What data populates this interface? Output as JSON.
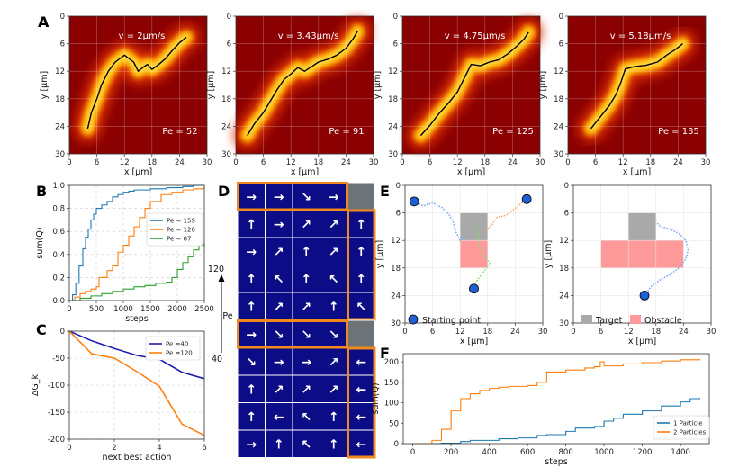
{
  "panel_labels": [
    "A",
    "B",
    "C",
    "D",
    "E",
    "F"
  ],
  "chart_data": [
    {
      "id": "A",
      "type": "heatmap",
      "xlabel": "x [μm]",
      "ylabel": "y [μm]",
      "xticks": [
        0,
        6,
        12,
        18,
        24,
        30
      ],
      "yticks": [
        0,
        6,
        12,
        18,
        24,
        30
      ],
      "xlim": [
        0,
        30
      ],
      "ylim": [
        30,
        0
      ],
      "subplots": [
        {
          "velocity": "v = 2μm/s",
          "pe": "Pe = 52",
          "trajectory": [
            [
              4,
              24.5
            ],
            [
              4.8,
              21
            ],
            [
              6,
              18
            ],
            [
              7,
              15
            ],
            [
              8.5,
              12
            ],
            [
              10,
              10
            ],
            [
              12,
              8.5
            ],
            [
              14,
              10
            ],
            [
              15,
              12
            ],
            [
              16,
              11.2
            ],
            [
              17,
              10.5
            ],
            [
              18,
              11.6
            ],
            [
              19.5,
              10.5
            ],
            [
              21,
              9.2
            ],
            [
              22.5,
              7.4
            ],
            [
              24,
              5.8
            ],
            [
              25.5,
              4.6
            ]
          ]
        },
        {
          "velocity": "v = 3.43μm/s",
          "pe": "Pe = 91",
          "trajectory": [
            [
              2.5,
              26
            ],
            [
              4,
              23.5
            ],
            [
              6,
              21
            ],
            [
              7.5,
              18.5
            ],
            [
              9,
              16
            ],
            [
              10.5,
              13.8
            ],
            [
              12,
              12.6
            ],
            [
              13.5,
              11.2
            ],
            [
              15,
              12
            ],
            [
              16.5,
              11
            ],
            [
              18,
              10
            ],
            [
              20,
              9.4
            ],
            [
              22,
              8.5
            ],
            [
              24,
              7
            ],
            [
              25.5,
              5
            ],
            [
              26.5,
              3.3
            ]
          ]
        },
        {
          "velocity": "v = 4.75μm/s",
          "pe": "Pe = 125",
          "trajectory": [
            [
              4,
              26
            ],
            [
              6,
              23.8
            ],
            [
              8,
              21.2
            ],
            [
              10,
              19
            ],
            [
              12,
              16.5
            ],
            [
              13,
              14.5
            ],
            [
              14,
              12.5
            ],
            [
              15,
              10.5
            ],
            [
              17,
              10.8
            ],
            [
              19,
              10
            ],
            [
              21,
              9.5
            ],
            [
              23,
              8.2
            ],
            [
              25,
              6.5
            ],
            [
              26.5,
              5
            ],
            [
              27.5,
              3.5
            ]
          ]
        },
        {
          "velocity": "v = 5.18μm/s",
          "pe": "Pe = 135",
          "trajectory": [
            [
              5,
              24.5
            ],
            [
              7,
              22
            ],
            [
              9,
              19.5
            ],
            [
              10.5,
              17
            ],
            [
              11.5,
              14.5
            ],
            [
              12.5,
              11.5
            ],
            [
              14.5,
              11
            ],
            [
              17,
              10.7
            ],
            [
              19.5,
              10
            ],
            [
              21.5,
              8.5
            ],
            [
              23.5,
              7.2
            ],
            [
              25,
              6
            ]
          ]
        }
      ]
    },
    {
      "id": "B",
      "type": "line",
      "xlabel": "steps",
      "ylabel": "sum(Q)",
      "xlim": [
        0,
        2500
      ],
      "ylim": [
        0,
        1.0
      ],
      "xticks": [
        0,
        500,
        1000,
        1500,
        2000,
        2500
      ],
      "yticks": [
        0.0,
        0.2,
        0.4,
        0.6,
        0.8,
        1.0
      ],
      "legend_position": "center-right",
      "series": [
        {
          "name": "Pe = 159",
          "color": "#1f77b4",
          "x": [
            0,
            60,
            120,
            180,
            250,
            300,
            350,
            400,
            450,
            500,
            600,
            700,
            800,
            900,
            1000,
            1100,
            1200,
            1500,
            1800,
            2100,
            2200,
            2300,
            2500
          ],
          "y": [
            0,
            0.05,
            0.15,
            0.3,
            0.45,
            0.55,
            0.62,
            0.7,
            0.75,
            0.8,
            0.83,
            0.86,
            0.9,
            0.92,
            0.94,
            0.95,
            0.96,
            0.97,
            0.98,
            0.99,
            0.99,
            1.0,
            1.0
          ]
        },
        {
          "name": "Pe = 120",
          "color": "#ff7f0e",
          "x": [
            0,
            100,
            200,
            300,
            400,
            500,
            550,
            700,
            800,
            900,
            1000,
            1100,
            1200,
            1300,
            1400,
            1500,
            1700,
            1900,
            2100,
            2300,
            2500
          ],
          "y": [
            0,
            0.03,
            0.06,
            0.08,
            0.1,
            0.12,
            0.2,
            0.26,
            0.3,
            0.42,
            0.48,
            0.56,
            0.64,
            0.72,
            0.8,
            0.86,
            0.92,
            0.94,
            0.96,
            0.97,
            0.99
          ]
        },
        {
          "name": "Pe = 87",
          "color": "#2ca02c",
          "x": [
            0,
            200,
            400,
            600,
            800,
            1000,
            1200,
            1400,
            1600,
            1800,
            1900,
            2000,
            2100,
            2200,
            2300,
            2400,
            2500
          ],
          "y": [
            0,
            0.02,
            0.04,
            0.06,
            0.08,
            0.1,
            0.12,
            0.13,
            0.15,
            0.16,
            0.2,
            0.27,
            0.33,
            0.38,
            0.44,
            0.48,
            0.5
          ]
        }
      ]
    },
    {
      "id": "C",
      "type": "line",
      "xlabel": "next best action",
      "ylabel": "ΔG_k",
      "xlim": [
        0,
        6
      ],
      "ylim": [
        -200,
        0
      ],
      "xticks": [
        0,
        2,
        4,
        6
      ],
      "yticks": [
        0,
        -50,
        -100,
        -150,
        -200
      ],
      "legend_position": "top-right",
      "series": [
        {
          "name": "Pe =40",
          "color": "#1f1faf",
          "x": [
            0,
            1,
            2,
            3,
            4,
            5,
            6
          ],
          "y": [
            0,
            -18,
            -32,
            -45,
            -52,
            -76,
            -88
          ]
        },
        {
          "name": "Pe =120",
          "color": "#ff7f0e",
          "x": [
            0,
            1,
            2,
            3,
            4,
            5,
            6
          ],
          "y": [
            0,
            -42,
            -50,
            -75,
            -102,
            -172,
            -193
          ]
        }
      ]
    },
    {
      "id": "D",
      "type": "table",
      "axis_label": "Pe",
      "axis_values": [
        "120",
        "40"
      ],
      "grids": [
        {
          "pe": "120",
          "rows": [
            [
              "→",
              "→",
              "↘",
              "→",
              "■"
            ],
            [
              "↑",
              "→",
              "↗",
              "↗",
              "↑"
            ],
            [
              "→",
              "↗",
              "↑",
              "↗",
              "↑"
            ],
            [
              "↑",
              "↖",
              "↑",
              "↖",
              "↑"
            ],
            [
              "↑",
              "↗",
              "↗",
              "↑",
              "↖"
            ]
          ]
        },
        {
          "pe": "40",
          "rows": [
            [
              "→",
              "↘",
              "↘",
              "↘",
              "■"
            ],
            [
              "↘",
              "→",
              "→",
              "↗",
              "←"
            ],
            [
              "↑",
              "↗",
              "↗",
              "↗",
              "←"
            ],
            [
              "↑",
              "←",
              "↖",
              "↑",
              "←"
            ],
            [
              "→",
              "↑",
              "↖",
              "↑",
              "←"
            ]
          ]
        }
      ]
    },
    {
      "id": "E",
      "type": "scatter",
      "xlabel": "x [μm]",
      "ylabel": "y [μm]",
      "xticks": [
        0,
        6,
        12,
        18,
        24,
        30
      ],
      "yticks": [
        0,
        6,
        12,
        18,
        24,
        30
      ],
      "legend": {
        "start": "Starting point",
        "target": "Target",
        "obstacle": "Obstacle"
      },
      "colors": {
        "target": "#a9a9a9",
        "obstacle": "#ff9a9a",
        "start": "#1f5fd6"
      },
      "subplots": [
        {
          "starts": [
            [
              2,
              3.5
            ],
            [
              26.5,
              3
            ],
            [
              15,
              22.5
            ]
          ],
          "target": [
            12,
            6,
            6,
            6
          ],
          "obstacle": [
            12,
            12,
            6,
            6
          ],
          "paths": [
            {
              "color": "#7aa9ee",
              "points": [
                [
                  2,
                  3.5
                ],
                [
                  4,
                  4.5
                ],
                [
                  6,
                  3.8
                ],
                [
                  8,
                  4.8
                ],
                [
                  9.5,
                  6.2
                ],
                [
                  10.5,
                  8
                ],
                [
                  11,
                  10
                ],
                [
                  12,
                  12
                ],
                [
                  13,
                  11
                ]
              ]
            },
            {
              "color": "#f5a26a",
              "points": [
                [
                  26.5,
                  3
                ],
                [
                  24,
                  5
                ],
                [
                  22,
                  6.5
                ],
                [
                  20,
                  7
                ],
                [
                  19,
                  8.5
                ],
                [
                  17.5,
                  10
                ]
              ]
            },
            {
              "color": "#80de6e",
              "points": [
                [
                  15,
                  22.5
                ],
                [
                  15.5,
                  21
                ],
                [
                  17,
                  19
                ],
                [
                  18.5,
                  17
                ],
                [
                  17,
                  15
                ],
                [
                  16,
                  13
                ],
                [
                  16,
                  11
                ],
                [
                  15,
                  9
                ]
              ]
            }
          ]
        },
        {
          "starts": [
            [
              15.5,
              24
            ]
          ],
          "target": [
            12,
            6,
            6,
            6
          ],
          "obstacle": [
            6,
            12,
            18,
            6
          ],
          "paths": [
            {
              "color": "#7aa9ee",
              "points": [
                [
                  15.5,
                  24
                ],
                [
                  17,
                  22
                ],
                [
                  19,
                  20.5
                ],
                [
                  21,
                  19.5
                ],
                [
                  23,
                  18
                ],
                [
                  24.5,
                  16
                ],
                [
                  25,
                  14
                ],
                [
                  24.5,
                  12
                ],
                [
                  23,
                  10.5
                ],
                [
                  21,
                  9.5
                ],
                [
                  19,
                  9
                ],
                [
                  18,
                  8
                ]
              ]
            }
          ]
        }
      ]
    },
    {
      "id": "F",
      "type": "line",
      "xlabel": "steps",
      "ylabel": "sum(Q)",
      "xlim": [
        -50,
        1550
      ],
      "ylim": [
        0,
        220
      ],
      "xticks": [
        0,
        200,
        400,
        600,
        800,
        1000,
        1200,
        1400
      ],
      "yticks": [
        0,
        50,
        100,
        150,
        200
      ],
      "legend_position": "bottom-right",
      "series": [
        {
          "name": "1 Particle",
          "color": "#1f77b4",
          "x": [
            0,
            150,
            250,
            300,
            450,
            550,
            650,
            700,
            800,
            850,
            950,
            1000,
            1050,
            1100,
            1200,
            1300,
            1400,
            1450,
            1500
          ],
          "y": [
            0,
            1,
            5,
            8,
            12,
            14,
            20,
            22,
            30,
            38,
            42,
            55,
            62,
            72,
            80,
            92,
            102,
            110,
            112
          ]
        },
        {
          "name": "2 Particles",
          "color": "#ff7f0e",
          "x": [
            0,
            100,
            150,
            200,
            250,
            300,
            350,
            400,
            450,
            500,
            600,
            650,
            700,
            800,
            900,
            950,
            980,
            1000,
            1100,
            1200,
            1300,
            1400,
            1500
          ],
          "y": [
            0,
            8,
            35,
            80,
            110,
            122,
            130,
            135,
            138,
            140,
            142,
            150,
            175,
            180,
            185,
            188,
            200,
            190,
            195,
            198,
            202,
            205,
            207
          ]
        }
      ]
    }
  ]
}
